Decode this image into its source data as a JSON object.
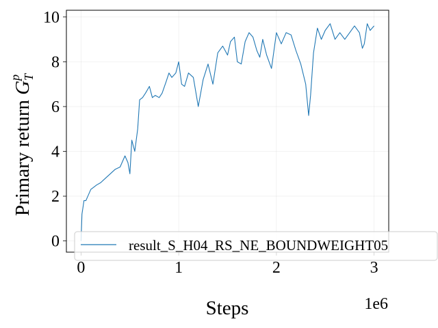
{
  "chart_data": {
    "type": "line",
    "title": "",
    "xlabel": "Steps",
    "ylabel": "Primary return",
    "ylabel_symbol": {
      "base": "G",
      "sup": "p",
      "sub": "T"
    },
    "x_offset_label": "1e6",
    "xlim": [
      -0.15,
      3.15
    ],
    "ylim": [
      -0.5,
      10.3
    ],
    "xticks": [
      0,
      1,
      2,
      3
    ],
    "xtick_labels": [
      "0",
      "1",
      "2",
      "3"
    ],
    "yticks": [
      0,
      2,
      4,
      6,
      8,
      10
    ],
    "ytick_labels": [
      "0",
      "2",
      "4",
      "6",
      "8",
      "10"
    ],
    "grid": true,
    "legend_position": "lower-right",
    "series": [
      {
        "name": "result_S_H04_RS_NE_BOUNDWEIGHT05",
        "color": "#1f77b4",
        "x": [
          0,
          0.01,
          0.03,
          0.05,
          0.08,
          0.1,
          0.13,
          0.16,
          0.2,
          0.25,
          0.3,
          0.35,
          0.4,
          0.45,
          0.48,
          0.5,
          0.52,
          0.55,
          0.58,
          0.6,
          0.63,
          0.66,
          0.7,
          0.73,
          0.76,
          0.8,
          0.83,
          0.87,
          0.9,
          0.93,
          0.97,
          1.0,
          1.03,
          1.06,
          1.1,
          1.15,
          1.2,
          1.25,
          1.3,
          1.35,
          1.4,
          1.45,
          1.5,
          1.53,
          1.57,
          1.6,
          1.64,
          1.68,
          1.72,
          1.76,
          1.8,
          1.83,
          1.86,
          1.9,
          1.95,
          2.0,
          2.05,
          2.1,
          2.15,
          2.2,
          2.25,
          2.3,
          2.33,
          2.35,
          2.38,
          2.42,
          2.46,
          2.5,
          2.55,
          2.6,
          2.65,
          2.7,
          2.75,
          2.8,
          2.85,
          2.88,
          2.9,
          2.93,
          2.96,
          3.0
        ],
        "y": [
          0,
          1.2,
          1.8,
          1.8,
          2.1,
          2.3,
          2.4,
          2.5,
          2.6,
          2.8,
          3.0,
          3.2,
          3.3,
          3.8,
          3.5,
          3.0,
          4.5,
          4.0,
          5.0,
          6.3,
          6.4,
          6.6,
          6.9,
          6.4,
          6.5,
          6.4,
          6.6,
          7.1,
          7.5,
          7.3,
          7.5,
          8.0,
          7.0,
          6.9,
          7.5,
          7.3,
          6.0,
          7.2,
          7.9,
          7.0,
          8.4,
          8.7,
          8.3,
          8.9,
          9.1,
          8.0,
          7.9,
          8.9,
          9.3,
          9.1,
          8.5,
          8.2,
          9.0,
          8.3,
          7.7,
          9.3,
          8.8,
          9.3,
          9.2,
          8.5,
          7.9,
          7.0,
          5.6,
          6.5,
          8.4,
          9.5,
          9.0,
          9.4,
          9.7,
          9.0,
          9.3,
          9.0,
          9.3,
          9.6,
          9.3,
          8.6,
          8.8,
          9.7,
          9.4,
          9.6
        ]
      }
    ]
  }
}
